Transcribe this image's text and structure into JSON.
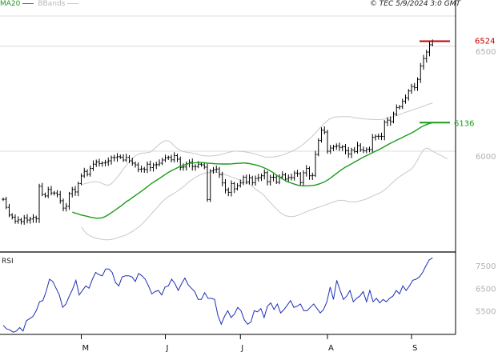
{
  "legend": {
    "ma_label": "MA20",
    "bbands_label": "BBands"
  },
  "credit": "© TEC 5/9/2024 3:0 GMT",
  "colors": {
    "candle": "#000000",
    "ma": "#1a9c1a",
    "bbands": "#c8c8c8",
    "rsi": "#1f2fb5",
    "grid": "#d0d0d0",
    "last_price": "#c00000",
    "axis": "#000000"
  },
  "chart_data": [
    {
      "type": "ohlc",
      "title": "",
      "series": [
        {
          "name": "MA20",
          "ref": "ma20"
        },
        {
          "name": "BBands",
          "ref": "bbands"
        }
      ],
      "x_ticks": [
        "M",
        "J",
        "J",
        "A",
        "S"
      ],
      "y_ticks": [
        "6500",
        "6000"
      ],
      "markers": {
        "last_price": "6524",
        "ma_last": "6136"
      },
      "ylim": [
        5520,
        6720
      ],
      "grid": true,
      "close": [
        5771,
        5733,
        5696,
        5686,
        5667,
        5673,
        5665,
        5682,
        5672,
        5677,
        5685,
        5678,
        5833,
        5794,
        5787,
        5818,
        5801,
        5801,
        5793,
        5764,
        5729,
        5738,
        5798,
        5818,
        5806,
        5846,
        5882,
        5904,
        5890,
        5918,
        5938,
        5949,
        5941,
        5944,
        5947,
        5954,
        5970,
        5970,
        5974,
        5971,
        5958,
        5970,
        5954,
        5943,
        5935,
        5914,
        5916,
        5913,
        5938,
        5922,
        5935,
        5936,
        5943,
        5958,
        5969,
        5971,
        5959,
        5979,
        5962,
        5923,
        5925,
        5941,
        5947,
        5927,
        5927,
        5938,
        5935,
        5924,
        5770,
        5906,
        5912,
        5915,
        5888,
        5849,
        5816,
        5804,
        5846,
        5821,
        5836,
        5849,
        5876,
        5854,
        5873,
        5850,
        5870,
        5874,
        5883,
        5898,
        5855,
        5876,
        5876,
        5852,
        5877,
        5887,
        5867,
        5875,
        5874,
        5896,
        5893,
        5850,
        5897,
        5918,
        5883,
        5885,
        5985,
        6051,
        6100,
        6091,
        6000,
        6015,
        6022,
        6025,
        6018,
        6021,
        6003,
        5987,
        6006,
        5998,
        6027,
        6007,
        6002,
        6010,
        6008,
        6066,
        6071,
        6071,
        6070,
        6138,
        6148,
        6141,
        6177,
        6208,
        6212,
        6238,
        6254,
        6287,
        6308,
        6303,
        6342,
        6406,
        6441,
        6472,
        6507,
        6524
      ],
      "ma20": [
        5710,
        5705,
        5701,
        5696,
        5693,
        5690,
        5686,
        5683,
        5681,
        5681,
        5683,
        5689,
        5697,
        5707,
        5717,
        5727,
        5737,
        5748,
        5760,
        5768,
        5779,
        5789,
        5799,
        5809,
        5820,
        5831,
        5842,
        5852,
        5861,
        5870,
        5880,
        5890,
        5899,
        5907,
        5914,
        5921,
        5928,
        5933,
        5938,
        5942,
        5944,
        5945,
        5946,
        5946,
        5945,
        5943,
        5942,
        5941,
        5940,
        5940,
        5939,
        5939,
        5939,
        5940,
        5941,
        5942,
        5943,
        5944,
        5943,
        5941,
        5938,
        5935,
        5931,
        5926,
        5920,
        5914,
        5906,
        5897,
        5886,
        5877,
        5868,
        5860,
        5853,
        5848,
        5843,
        5839,
        5836,
        5835,
        5835,
        5836,
        5837,
        5839,
        5843,
        5848,
        5854,
        5862,
        5872,
        5883,
        5894,
        5905,
        5915,
        5924,
        5932,
        5940,
        5948,
        5956,
        5964,
        5972,
        5979,
        5986,
        5993,
        6000,
        6007,
        6014,
        6022,
        6030,
        6038,
        6045,
        6052,
        6059,
        6066,
        6073,
        6080,
        6087,
        6095,
        6104,
        6113,
        6121,
        6127,
        6132,
        6136
      ],
      "bb_upper": [
        5840,
        5845,
        5848,
        5852,
        5855,
        5855,
        5852,
        5846,
        5840,
        5838,
        5845,
        5860,
        5876,
        5895,
        5915,
        5933,
        5950,
        5965,
        5978,
        5986,
        5991,
        5991,
        5993,
        5996,
        6007,
        6020,
        6033,
        6044,
        6050,
        6050,
        6040,
        6024,
        6012,
        6004,
        5998,
        5995,
        5993,
        5991,
        5988,
        5984,
        5980,
        5978,
        5977,
        5977,
        5978,
        5980,
        5982,
        5986,
        5990,
        5994,
        5998,
        6000,
        6000,
        5999,
        5998,
        5996,
        5993,
        5990,
        5987,
        5982,
        5978,
        5973,
        5972,
        5972,
        5973,
        5975,
        5978,
        5982,
        5987,
        5993,
        5999,
        6006,
        6014,
        6023,
        6034,
        6046,
        6058,
        6072,
        6087,
        6103,
        6119,
        6133,
        6146,
        6156,
        6161,
        6163,
        6164,
        6165,
        6165,
        6165,
        6163,
        6159,
        6158,
        6156,
        6154,
        6153,
        6152,
        6151,
        6151,
        6150,
        6151,
        6153,
        6157,
        6161,
        6165,
        6170,
        6175,
        6180,
        6185,
        6190,
        6195,
        6200,
        6205,
        6210,
        6215,
        6220,
        6225,
        6230
      ],
      "bb_lower": [
        5640,
        5620,
        5605,
        5597,
        5590,
        5585,
        5583,
        5580,
        5578,
        5578,
        5580,
        5583,
        5587,
        5592,
        5597,
        5602,
        5610,
        5618,
        5628,
        5638,
        5650,
        5665,
        5680,
        5696,
        5712,
        5728,
        5744,
        5760,
        5773,
        5784,
        5792,
        5800,
        5810,
        5820,
        5831,
        5843,
        5856,
        5866,
        5875,
        5883,
        5890,
        5895,
        5898,
        5900,
        5901,
        5900,
        5897,
        5893,
        5888,
        5883,
        5877,
        5872,
        5867,
        5862,
        5856,
        5850,
        5842,
        5832,
        5820,
        5810,
        5800,
        5788,
        5770,
        5755,
        5740,
        5725,
        5712,
        5700,
        5693,
        5690,
        5688,
        5690,
        5694,
        5700,
        5706,
        5712,
        5718,
        5723,
        5728,
        5733,
        5738,
        5743,
        5748,
        5753,
        5758,
        5763,
        5766,
        5766,
        5764,
        5760,
        5758,
        5758,
        5760,
        5764,
        5768,
        5773,
        5779,
        5786,
        5792,
        5798,
        5806,
        5816,
        5828,
        5842,
        5855,
        5867,
        5878,
        5888,
        5897,
        5906,
        5915,
        5935,
        5958,
        5985,
        6007,
        6015,
        6010,
        6000,
        5992,
        5985,
        5978,
        5970,
        5963
      ],
      "rsi": {
        "ylim": [
          4450,
          8000
        ],
        "y_ticks": [
          "7500",
          "6500",
          "5500"
        ],
        "values": [
          4850,
          4700,
          4650,
          4550,
          4600,
          4750,
          4600,
          5050,
          5150,
          5250,
          5500,
          5900,
          5950,
          6350,
          6900,
          6800,
          6500,
          6200,
          5650,
          5800,
          6150,
          6450,
          6850,
          6200,
          6400,
          6600,
          6500,
          6900,
          7200,
          7100,
          7050,
          7350,
          7350,
          7200,
          6750,
          6600,
          7000,
          7050,
          7050,
          7000,
          6800,
          7150,
          7050,
          6900,
          6600,
          6250,
          6350,
          6400,
          6200,
          6550,
          6600,
          6900,
          6700,
          6400,
          6700,
          6950,
          6650,
          6500,
          6350,
          6000,
          6000,
          6300,
          6050,
          6050,
          6000,
          5300,
          4900,
          5250,
          5500,
          5200,
          5350,
          5650,
          5500,
          5100,
          4900,
          5000,
          5500,
          5450,
          5600,
          5200,
          5700,
          5850,
          5550,
          5800,
          5400,
          5550,
          5750,
          5950,
          5650,
          5700,
          5800,
          5500,
          5500,
          5650,
          5800,
          5600,
          5400,
          5550,
          5900,
          6550,
          6000,
          6850,
          6400,
          6000,
          6150,
          6400,
          5900,
          6050,
          6150,
          6350,
          5900,
          6400,
          5900,
          6050,
          5850,
          6000,
          5900,
          6050,
          6150,
          6400,
          6250,
          6600,
          6400,
          6600,
          6850,
          6900,
          7000,
          7200,
          7500,
          7750,
          7850
        ]
      }
    }
  ]
}
